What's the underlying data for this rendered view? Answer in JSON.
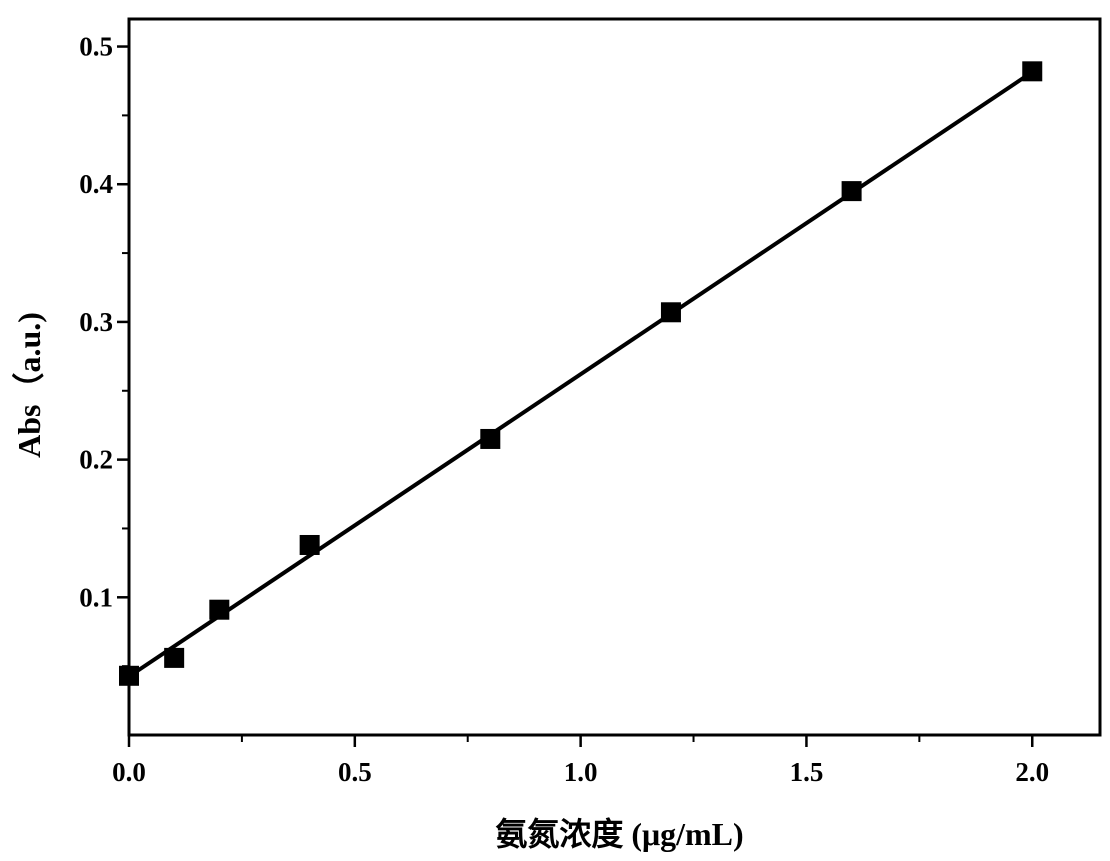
{
  "chart_data": {
    "type": "scatter",
    "xlabel": "氨氮浓度 (μg/mL)",
    "ylabel": "Abs（a.u.)",
    "xlim": [
      0.0,
      2.15
    ],
    "ylim": [
      0.0,
      0.52
    ],
    "x_ticks": [
      {
        "value": 0.0,
        "label": "0.0"
      },
      {
        "value": 0.5,
        "label": "0.5"
      },
      {
        "value": 1.0,
        "label": "1.0"
      },
      {
        "value": 1.5,
        "label": "1.5"
      },
      {
        "value": 2.0,
        "label": "2.0"
      }
    ],
    "y_ticks": [
      {
        "value": 0.1,
        "label": "0.1"
      },
      {
        "value": 0.2,
        "label": "0.2"
      },
      {
        "value": 0.3,
        "label": "0.3"
      },
      {
        "value": 0.4,
        "label": "0.4"
      },
      {
        "value": 0.5,
        "label": "0.5"
      }
    ],
    "x_minor_ticks": [
      0.25,
      0.75,
      1.25,
      1.75
    ],
    "y_minor_ticks": [
      0.05,
      0.15,
      0.25,
      0.35,
      0.45
    ],
    "grid": false,
    "series": [
      {
        "marker": "square",
        "color": "#000000",
        "x": [
          0.0,
          0.1,
          0.2,
          0.4,
          0.8,
          1.2,
          1.6,
          2.0
        ],
        "y": [
          0.043,
          0.056,
          0.091,
          0.138,
          0.215,
          0.307,
          0.395,
          0.482
        ]
      }
    ],
    "fit_line": {
      "color": "#000000",
      "x": [
        0.0,
        2.0
      ],
      "y": [
        0.0425,
        0.4815
      ]
    }
  }
}
